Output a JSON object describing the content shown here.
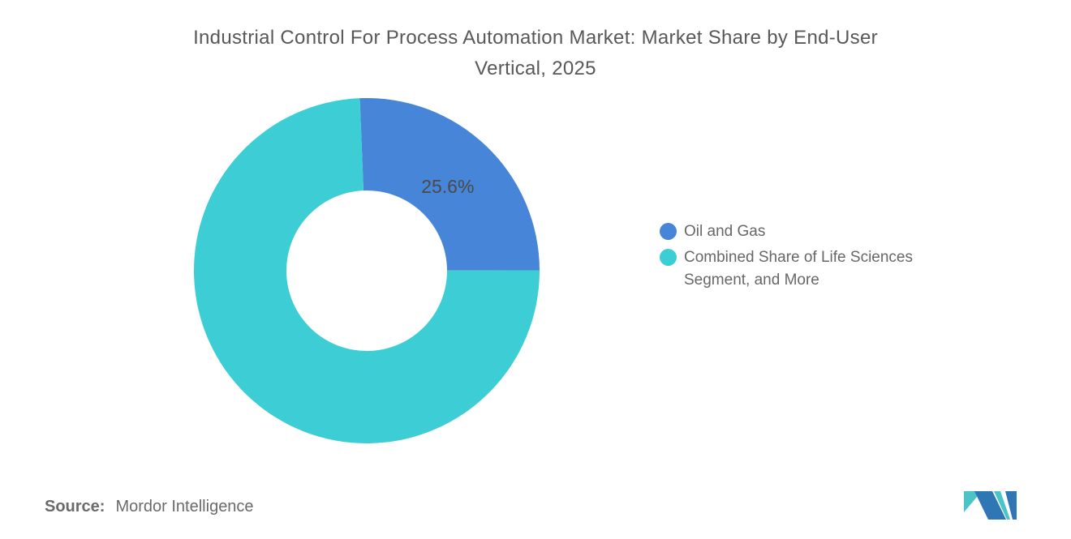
{
  "title": {
    "lines": [
      "Industrial Control For Process Automation Market: Market Share by End-User",
      "Vertical, 2025"
    ]
  },
  "chart_data": {
    "type": "pie",
    "subtype": "donut",
    "title": "Industrial Control For Process Automation Market: Market Share by End-User Vertical, 2025",
    "unit": "%",
    "start_angle_deg": -2.3,
    "direction": "clockwise",
    "inner_radius_ratio": 0.465,
    "legend_position": "right",
    "segments": [
      {
        "label": "Oil and Gas",
        "value": 25.6,
        "color": "#4685d7",
        "data_label": "25.6%"
      },
      {
        "label": "Combined Share of Life Sciences Segment, and More",
        "value": 74.4,
        "color": "#3dced5",
        "data_label": ""
      }
    ]
  },
  "legend": {
    "items": [
      {
        "label": "Oil and Gas",
        "color": "#4685d7"
      },
      {
        "label": "Combined Share of Life Sciences Segment, and More",
        "color": "#3dced5"
      }
    ]
  },
  "source": {
    "prefix": "Source:",
    "name": "Mordor Intelligence"
  },
  "logo": {
    "teal": "#4bc4c8",
    "blue": "#2e76b4"
  },
  "colors": {
    "background": "#ffffff",
    "title_text": "#585858",
    "legend_text": "#676767",
    "source_text": "#6a6a6a",
    "slice_label_text": "#4a4a4a"
  }
}
